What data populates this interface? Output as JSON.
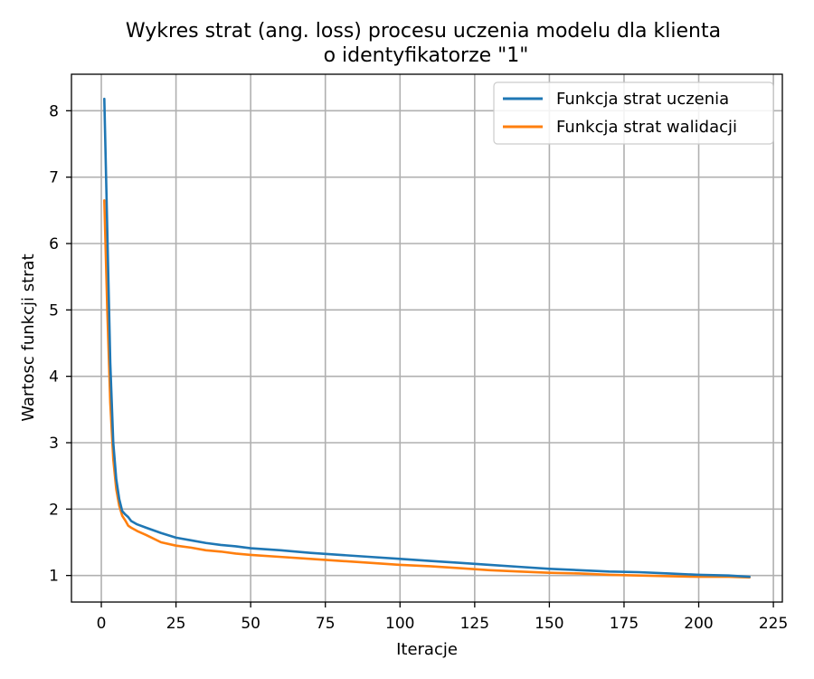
{
  "chart_data": {
    "type": "line",
    "title_line1": "Wykres strat (ang. loss) procesu uczenia modelu dla klienta",
    "title_line2": "o identyfikatorze \"1\"",
    "xlabel": "Iteracje",
    "ylabel": "Wartosc funkcji strat",
    "xlim": [
      -10,
      228
    ],
    "ylim": [
      0.6,
      8.55
    ],
    "xticks": [
      0,
      25,
      50,
      75,
      100,
      125,
      150,
      175,
      200,
      225
    ],
    "yticks": [
      1,
      2,
      3,
      4,
      5,
      6,
      7,
      8
    ],
    "grid": true,
    "legend_position": "top-right",
    "series": [
      {
        "name": "Funkcja strat uczenia",
        "color": "#1f77b4",
        "points": [
          [
            1,
            8.18
          ],
          [
            2,
            6.2
          ],
          [
            3,
            4.2
          ],
          [
            4,
            3.0
          ],
          [
            5,
            2.45
          ],
          [
            6,
            2.15
          ],
          [
            7,
            1.97
          ],
          [
            8,
            1.92
          ],
          [
            9,
            1.88
          ],
          [
            10,
            1.82
          ],
          [
            12,
            1.77
          ],
          [
            15,
            1.72
          ],
          [
            20,
            1.64
          ],
          [
            25,
            1.57
          ],
          [
            30,
            1.53
          ],
          [
            35,
            1.49
          ],
          [
            40,
            1.46
          ],
          [
            45,
            1.44
          ],
          [
            50,
            1.41
          ],
          [
            60,
            1.38
          ],
          [
            70,
            1.34
          ],
          [
            80,
            1.31
          ],
          [
            90,
            1.28
          ],
          [
            100,
            1.25
          ],
          [
            110,
            1.22
          ],
          [
            120,
            1.19
          ],
          [
            130,
            1.16
          ],
          [
            140,
            1.13
          ],
          [
            150,
            1.1
          ],
          [
            160,
            1.08
          ],
          [
            170,
            1.06
          ],
          [
            180,
            1.05
          ],
          [
            190,
            1.03
          ],
          [
            200,
            1.01
          ],
          [
            210,
            1.0
          ],
          [
            217,
            0.98
          ]
        ]
      },
      {
        "name": "Funkcja strat walidacji",
        "color": "#ff7f0e",
        "points": [
          [
            1,
            6.65
          ],
          [
            2,
            5.0
          ],
          [
            3,
            3.6
          ],
          [
            4,
            2.75
          ],
          [
            5,
            2.3
          ],
          [
            6,
            2.05
          ],
          [
            7,
            1.9
          ],
          [
            8,
            1.83
          ],
          [
            9,
            1.75
          ],
          [
            10,
            1.72
          ],
          [
            12,
            1.67
          ],
          [
            15,
            1.61
          ],
          [
            20,
            1.5
          ],
          [
            25,
            1.45
          ],
          [
            30,
            1.42
          ],
          [
            35,
            1.38
          ],
          [
            40,
            1.36
          ],
          [
            45,
            1.33
          ],
          [
            50,
            1.31
          ],
          [
            60,
            1.28
          ],
          [
            70,
            1.25
          ],
          [
            80,
            1.22
          ],
          [
            90,
            1.19
          ],
          [
            100,
            1.16
          ],
          [
            110,
            1.14
          ],
          [
            120,
            1.11
          ],
          [
            130,
            1.08
          ],
          [
            140,
            1.06
          ],
          [
            150,
            1.04
          ],
          [
            160,
            1.03
          ],
          [
            170,
            1.01
          ],
          [
            180,
            1.0
          ],
          [
            190,
            0.99
          ],
          [
            200,
            0.98
          ],
          [
            210,
            0.98
          ],
          [
            217,
            0.97
          ]
        ]
      }
    ]
  }
}
